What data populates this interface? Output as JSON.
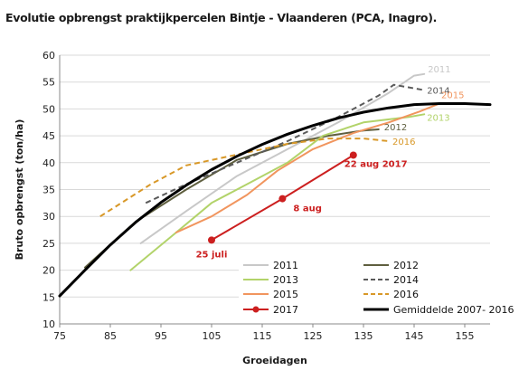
{
  "chart_data": {
    "type": "line",
    "title": "Evolutie opbrengst praktijkpercelen Bintje - Vlaanderen (PCA, Inagro).",
    "xlabel": "Groeidagen",
    "ylabel": "Bruto opbrengst (ton/ha)",
    "xlim": [
      75,
      160
    ],
    "ylim": [
      10,
      60
    ],
    "xticks": [
      75,
      85,
      95,
      105,
      115,
      125,
      135,
      145,
      155
    ],
    "yticks": [
      10,
      15,
      20,
      25,
      30,
      35,
      40,
      45,
      50,
      55,
      60
    ],
    "grid": "horizontal",
    "legend_position": "bottom-right",
    "series": [
      {
        "name": "2011",
        "color": "#c8c8c8",
        "dash": "solid",
        "end_label": "2011",
        "points": [
          [
            91,
            25
          ],
          [
            100,
            31
          ],
          [
            110,
            37.5
          ],
          [
            120,
            42.5
          ],
          [
            130,
            47.5
          ],
          [
            140,
            53
          ],
          [
            145,
            56.2
          ],
          [
            147,
            56.5
          ]
        ]
      },
      {
        "name": "2012",
        "color": "#5f5f3f",
        "dash": "solid",
        "end_label": "2012",
        "points": [
          [
            80,
            20.5
          ],
          [
            90,
            29
          ],
          [
            100,
            35
          ],
          [
            110,
            40.5
          ],
          [
            120,
            43.5
          ],
          [
            128,
            45
          ],
          [
            135,
            46
          ],
          [
            138,
            46.2
          ]
        ]
      },
      {
        "name": "2013",
        "color": "#b2d36a",
        "dash": "solid",
        "end_label": "2013",
        "points": [
          [
            89,
            20
          ],
          [
            98,
            27
          ],
          [
            105,
            32.5
          ],
          [
            113,
            36.5
          ],
          [
            120,
            40
          ],
          [
            127,
            45
          ],
          [
            135,
            47.5
          ],
          [
            144,
            48.5
          ],
          [
            147,
            49
          ]
        ]
      },
      {
        "name": "2014",
        "color": "#5a5a5a",
        "dash": "dash",
        "end_label": "2014",
        "points": [
          [
            92,
            32.5
          ],
          [
            100,
            36
          ],
          [
            110,
            40
          ],
          [
            120,
            44
          ],
          [
            130,
            48.5
          ],
          [
            138,
            52.5
          ],
          [
            141,
            54.5
          ],
          [
            147,
            53.5
          ]
        ]
      },
      {
        "name": "2015",
        "color": "#f1955e",
        "dash": "solid",
        "end_label": "2015",
        "points": [
          [
            98,
            27
          ],
          [
            105,
            30
          ],
          [
            112,
            34
          ],
          [
            118,
            38.5
          ],
          [
            125,
            42.5
          ],
          [
            133,
            45.5
          ],
          [
            140,
            47.5
          ],
          [
            146,
            49.5
          ],
          [
            150,
            51
          ]
        ]
      },
      {
        "name": "2016",
        "color": "#d89828",
        "dash": "dash",
        "end_label": "2016",
        "points": [
          [
            83,
            30
          ],
          [
            93,
            36
          ],
          [
            100,
            39.5
          ],
          [
            110,
            41.5
          ],
          [
            120,
            43.5
          ],
          [
            128,
            44.5
          ],
          [
            135,
            44.5
          ],
          [
            140,
            44
          ]
        ]
      },
      {
        "name": "2017",
        "color": "#cc1f1f",
        "dash": "solid",
        "marker": "circle",
        "points": [
          [
            105,
            25.6
          ],
          [
            119,
            33.3
          ],
          [
            133,
            41.4
          ]
        ]
      },
      {
        "name": "Gemiddelde 2007- 2016",
        "color": "#000000",
        "dash": "solid",
        "width": 3,
        "points": [
          [
            75,
            15.2
          ],
          [
            80,
            20
          ],
          [
            85,
            24.7
          ],
          [
            90,
            28.9
          ],
          [
            95,
            32.6
          ],
          [
            100,
            35.8
          ],
          [
            105,
            38.7
          ],
          [
            110,
            41.2
          ],
          [
            115,
            43.4
          ],
          [
            120,
            45.3
          ],
          [
            125,
            46.9
          ],
          [
            130,
            48.3
          ],
          [
            135,
            49.4
          ],
          [
            140,
            50.2
          ],
          [
            145,
            50.8
          ],
          [
            150,
            51
          ],
          [
            155,
            51
          ],
          [
            160,
            50.8
          ]
        ]
      }
    ],
    "annotations": [
      {
        "text": "25 juli",
        "x": 105,
        "y": 25.6,
        "color": "#cc1f1f"
      },
      {
        "text": "8 aug",
        "x": 119,
        "y": 33.3,
        "color": "#cc1f1f"
      },
      {
        "text": "22 aug 2017",
        "x": 133,
        "y": 41.4,
        "color": "#cc1f1f"
      }
    ]
  }
}
